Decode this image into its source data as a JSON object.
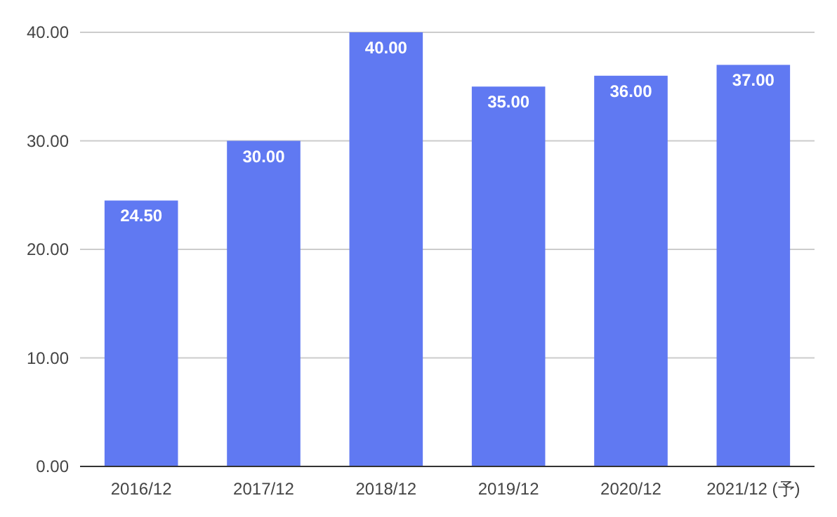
{
  "chart_data": {
    "type": "bar",
    "categories": [
      "2016/12",
      "2017/12",
      "2018/12",
      "2019/12",
      "2020/12",
      "2021/12 (予)"
    ],
    "values": [
      24.5,
      30,
      40,
      35,
      36,
      37
    ],
    "value_labels": [
      "24.50",
      "30.00",
      "40.00",
      "35.00",
      "36.00",
      "37.00"
    ],
    "color": "#6079f2",
    "ylim": [
      0,
      40
    ],
    "yticks": [
      {
        "value": 0,
        "label": "0.00"
      },
      {
        "value": 10,
        "label": "10.00"
      },
      {
        "value": 20,
        "label": "20.00"
      },
      {
        "value": 30,
        "label": "30.00"
      },
      {
        "value": 40,
        "label": "40.00"
      }
    ],
    "grid": "y"
  }
}
